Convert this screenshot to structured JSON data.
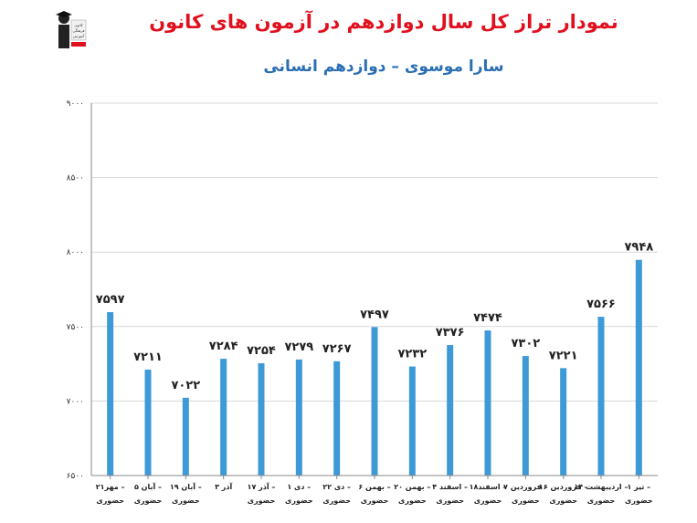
{
  "title": "نمودار تراز کل سال دوازدهم در آزمون های کانون",
  "subtitle": "سارا موسوی – دوازدهم انسانی",
  "logo": {
    "name": "kanoon-logo-icon",
    "text": [
      "کانون",
      "فرهنگی",
      "آموزش"
    ]
  },
  "colors": {
    "bar": "#3d9ad6",
    "title": "#e0101e",
    "subtitle": "#2a6fb3",
    "grid": "#d9d9d9"
  },
  "chart_data": {
    "type": "bar",
    "title": "نمودار تراز کل سال دوازدهم در آزمون های کانون",
    "ylim": [
      6500,
      9000
    ],
    "yticks": [
      6500,
      7000,
      7500,
      8000,
      8500,
      9000
    ],
    "ytick_labels": [
      "۶۵۰۰",
      "۷۰۰۰",
      "۷۵۰۰",
      "۸۰۰۰",
      "۸۵۰۰",
      "۹۰۰۰"
    ],
    "grid": true,
    "categories": [
      [
        "۲۱مهر –",
        "حضوری"
      ],
      [
        "۵ آبان –",
        "حضوری"
      ],
      [
        "۱۹ آبان –",
        "حضوری"
      ],
      [
        "۳ آذر",
        ""
      ],
      [
        "۱۷ آذر –",
        "حضوری"
      ],
      [
        "۱ دی –",
        "حضوری"
      ],
      [
        "۲۲ دی –",
        "حضوری"
      ],
      [
        "۶ بهمن –",
        "حضوری"
      ],
      [
        "۲۰ بهمن –",
        "حضوری"
      ],
      [
        "۴ اسفند –",
        "حضوری"
      ],
      [
        "۱۸اسفند –",
        "حضوری"
      ],
      [
        "۷ فروردین –",
        "حضوری"
      ],
      [
        "۱۶ فروردین –",
        "حضوری"
      ],
      [
        "۱۴ اردیبهشت –",
        "حضوری"
      ],
      [
        "۱ تیر –",
        "حضوری"
      ]
    ],
    "values": [
      7597,
      7211,
      7022,
      7284,
      7254,
      7279,
      7267,
      7497,
      7232,
      7376,
      7474,
      7302,
      7221,
      7566,
      7948
    ],
    "value_labels": [
      "۷۵۹۷",
      "۷۲۱۱",
      "۷۰۲۲",
      "۷۲۸۴",
      "۷۲۵۴",
      "۷۲۷۹",
      "۷۲۶۷",
      "۷۴۹۷",
      "۷۲۳۲",
      "۷۳۷۶",
      "۷۴۷۴",
      "۷۳۰۲",
      "۷۲۲۱",
      "۷۵۶۶",
      "۷۹۴۸"
    ]
  }
}
